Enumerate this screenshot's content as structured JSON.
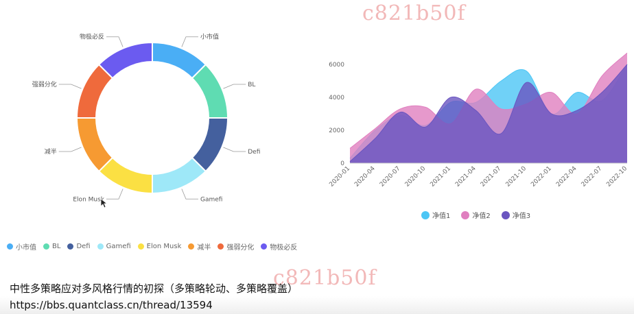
{
  "watermark_text": "c821b50f",
  "caption": "中性多策略应对多风格行情的初探（多策略轮动、多策略覆盖）",
  "url": "https://bbs.quantclass.cn/thread/13594",
  "chart_data": [
    {
      "type": "pie",
      "style": "donut",
      "categories": [
        "小市值",
        "BL",
        "Defi",
        "Gamefi",
        "Elon Musk",
        "减半",
        "强弱分化",
        "物极必反"
      ],
      "values": [
        1,
        1,
        1,
        1,
        1,
        1,
        1,
        1
      ],
      "colors": [
        "#4aaef5",
        "#5fdcb2",
        "#44609e",
        "#9ee8f8",
        "#fbe043",
        "#f69a32",
        "#ef6a3c",
        "#6b5bf0"
      ],
      "legend_position": "bottom"
    },
    {
      "type": "area",
      "categories": [
        "2020-01",
        "2020-04",
        "2020-07",
        "2020-10",
        "2021-01",
        "2021-04",
        "2021-07",
        "2021-10",
        "2022-01",
        "2022-04",
        "2022-07",
        "2022-10"
      ],
      "ylim": [
        0,
        7000
      ],
      "yticks": [
        0,
        2000,
        4000,
        6000
      ],
      "grid": false,
      "legend_position": "bottom",
      "series": [
        {
          "name": "净值1",
          "color": "#4cc6f5",
          "values": [
            300,
            2000,
            2900,
            2300,
            3700,
            3700,
            5000,
            5600,
            3000,
            4300,
            3800,
            6000
          ]
        },
        {
          "name": "净值2",
          "color": "#e07fbf",
          "values": [
            900,
            2100,
            3300,
            3400,
            2400,
            4500,
            3300,
            3600,
            4300,
            3000,
            5300,
            6700
          ]
        },
        {
          "name": "净值3",
          "color": "#6a55c0",
          "values": [
            100,
            1500,
            3100,
            2200,
            4000,
            3200,
            1800,
            4900,
            3000,
            3200,
            4300,
            6000
          ]
        }
      ]
    }
  ]
}
